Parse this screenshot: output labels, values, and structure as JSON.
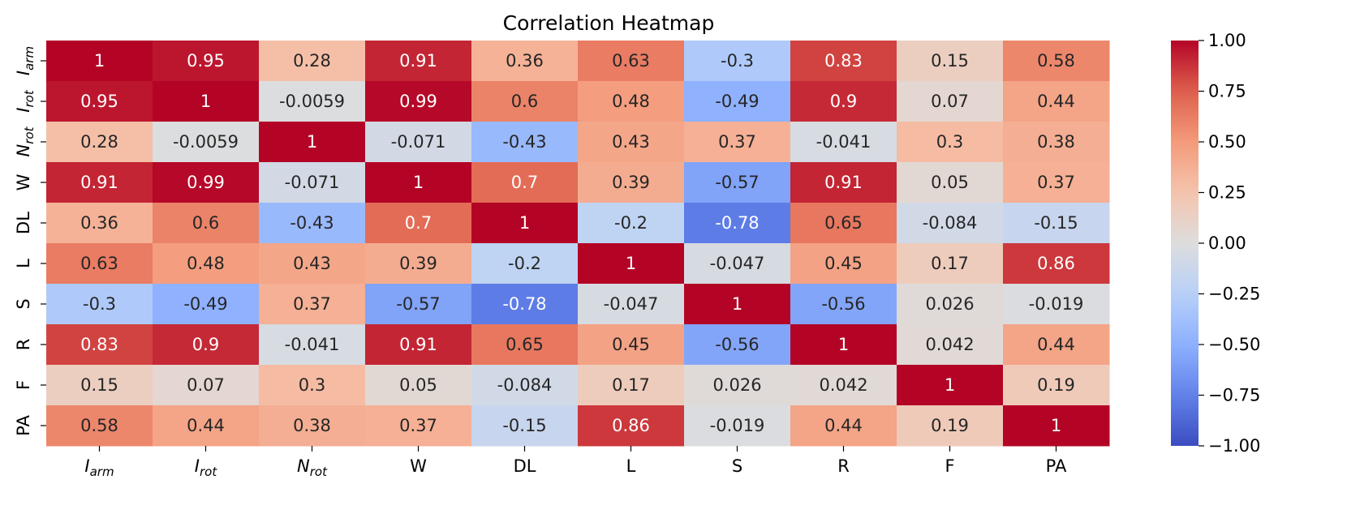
{
  "chart_data": {
    "type": "heatmap",
    "title": "Correlation Heatmap",
    "xlabel": "",
    "ylabel": "",
    "labels": [
      {
        "base": "I",
        "sub": "arm"
      },
      {
        "base": "I",
        "sub": "rot"
      },
      {
        "base": "N",
        "sub": "rot"
      },
      {
        "base": "W",
        "sub": ""
      },
      {
        "base": "DL",
        "sub": ""
      },
      {
        "base": "L",
        "sub": ""
      },
      {
        "base": "S",
        "sub": ""
      },
      {
        "base": "R",
        "sub": ""
      },
      {
        "base": "F",
        "sub": ""
      },
      {
        "base": "PA",
        "sub": ""
      }
    ],
    "matrix": [
      [
        "1",
        "0.95",
        "0.28",
        "0.91",
        "0.36",
        "0.63",
        "-0.3",
        "0.83",
        "0.15",
        "0.58"
      ],
      [
        "0.95",
        "1",
        "-0.0059",
        "0.99",
        "0.6",
        "0.48",
        "-0.49",
        "0.9",
        "0.07",
        "0.44"
      ],
      [
        "0.28",
        "-0.0059",
        "1",
        "-0.071",
        "-0.43",
        "0.43",
        "0.37",
        "-0.041",
        "0.3",
        "0.38"
      ],
      [
        "0.91",
        "0.99",
        "-0.071",
        "1",
        "0.7",
        "0.39",
        "-0.57",
        "0.91",
        "0.05",
        "0.37"
      ],
      [
        "0.36",
        "0.6",
        "-0.43",
        "0.7",
        "1",
        "-0.2",
        "-0.78",
        "0.65",
        "-0.084",
        "-0.15"
      ],
      [
        "0.63",
        "0.48",
        "0.43",
        "0.39",
        "-0.2",
        "1",
        "-0.047",
        "0.45",
        "0.17",
        "0.86"
      ],
      [
        "-0.3",
        "-0.49",
        "0.37",
        "-0.57",
        "-0.78",
        "-0.047",
        "1",
        "-0.56",
        "0.026",
        "-0.019"
      ],
      [
        "0.83",
        "0.9",
        "-0.041",
        "0.91",
        "0.65",
        "0.45",
        "-0.56",
        "1",
        "0.042",
        "0.44"
      ],
      [
        "0.15",
        "0.07",
        "0.3",
        "0.05",
        "-0.084",
        "0.17",
        "0.026",
        "0.042",
        "1",
        "0.19"
      ],
      [
        "0.58",
        "0.44",
        "0.38",
        "0.37",
        "-0.15",
        "0.86",
        "-0.019",
        "0.44",
        "0.19",
        "1"
      ]
    ],
    "colormap": "coolwarm",
    "vmin": -1.0,
    "vmax": 1.0,
    "colorbar_ticks": [
      "1.00",
      "0.75",
      "0.50",
      "0.25",
      "0.00",
      "−0.25",
      "−0.50",
      "−0.75",
      "−1.00"
    ],
    "colorbar_values": [
      1.0,
      0.75,
      0.5,
      0.25,
      0.0,
      -0.25,
      -0.5,
      -0.75,
      -1.0
    ],
    "legend": "colorbar-right"
  }
}
